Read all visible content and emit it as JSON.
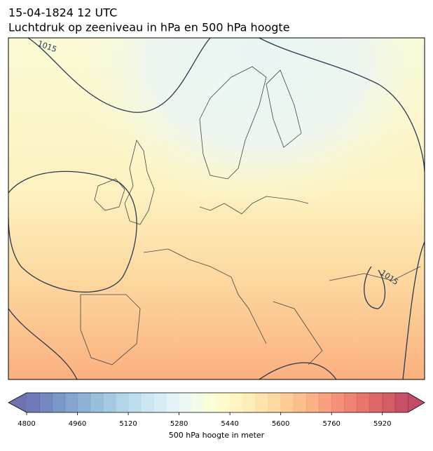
{
  "header": {
    "title": "15-04-1824 12 UTC",
    "subtitle": "Luchtdruk op zeeniveau in hPa en 500 hPa hoogte"
  },
  "map": {
    "contour_labels": [
      1015,
      1015
    ]
  },
  "colorbar": {
    "label": "500 hPa hoogte in meter",
    "range": [
      4800,
      6000
    ],
    "level_step": 40,
    "ticks": [
      4800,
      4960,
      5120,
      5280,
      5440,
      5600,
      5760,
      5920
    ],
    "colormap": "RdYlBu_r",
    "alpha": 0.7,
    "extend": "both"
  }
}
